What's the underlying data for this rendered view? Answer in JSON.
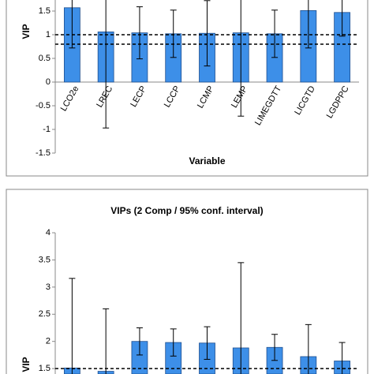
{
  "chart_data": [
    {
      "type": "bar",
      "y_label": "VIP",
      "x_label": "Variable",
      "categories": [
        "LCO2e",
        "LREC",
        "LECP",
        "LCCP",
        "LCMP",
        "LEMP",
        "LIMEGDTT",
        "LICGTD",
        "LGDPPC"
      ],
      "values": [
        1.57,
        1.06,
        1.04,
        1.02,
        1.03,
        1.04,
        1.02,
        1.51,
        1.47
      ],
      "errors": [
        0.85,
        2.03,
        0.55,
        0.5,
        0.69,
        1.76,
        0.5,
        0.79,
        0.5
      ],
      "color": "#3d8fe8",
      "reference_lines": [
        1,
        0.8
      ],
      "ylim": [
        -1.5,
        1.75
      ],
      "yticks": [
        -1.5,
        -1,
        -0.5,
        0,
        0.5,
        1,
        1.5
      ]
    },
    {
      "type": "bar",
      "title": "VIPs (2 Comp / 95% conf. interval)",
      "y_label": "VIP",
      "values": [
        1.51,
        1.45,
        2.0,
        1.98,
        1.97,
        1.88,
        1.89,
        1.72,
        1.64
      ],
      "errors": [
        1.65,
        1.15,
        0.25,
        0.25,
        0.3,
        1.57,
        0.24,
        0.59,
        0.34
      ],
      "color": "#3d8fe8",
      "reference_lines": [
        1.5
      ],
      "ylim": [
        1.4,
        4
      ],
      "yticks": [
        1.5,
        2,
        2.5,
        3,
        3.5,
        4
      ]
    }
  ]
}
